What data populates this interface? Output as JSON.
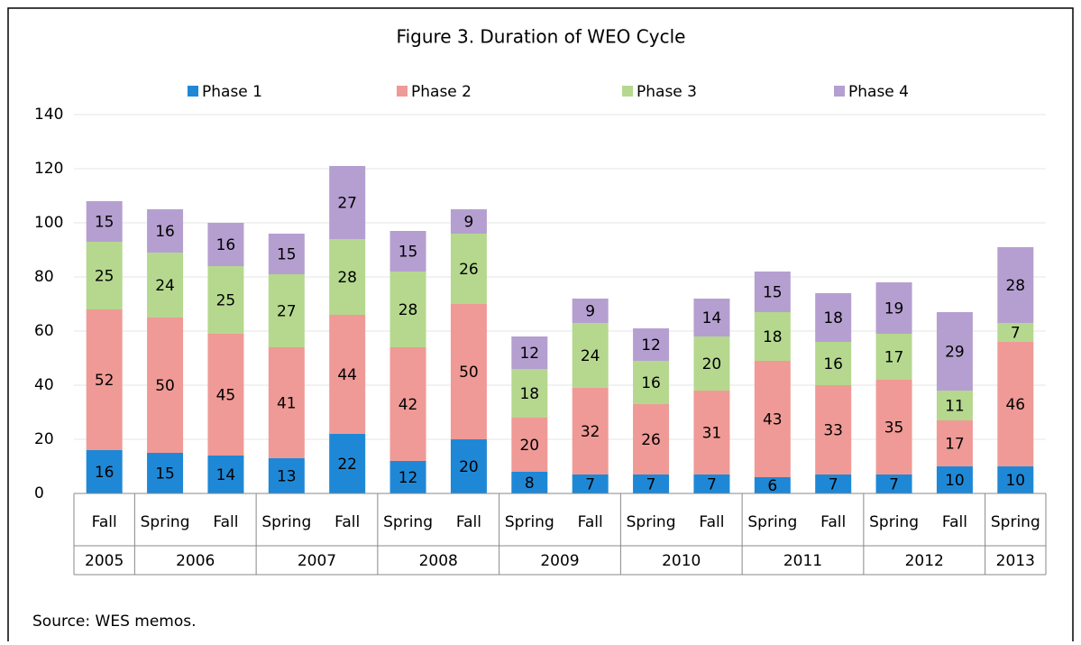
{
  "chart_data": {
    "type": "stacked_bar",
    "title": "Figure 3. Duration of WEO Cycle",
    "groups": [
      {
        "year": "2005",
        "seasons": [
          "Fall"
        ]
      },
      {
        "year": "2006",
        "seasons": [
          "Spring",
          "Fall"
        ]
      },
      {
        "year": "2007",
        "seasons": [
          "Spring",
          "Fall"
        ]
      },
      {
        "year": "2008",
        "seasons": [
          "Spring",
          "Fall"
        ]
      },
      {
        "year": "2009",
        "seasons": [
          "Spring",
          "Fall"
        ]
      },
      {
        "year": "2010",
        "seasons": [
          "Spring",
          "Fall"
        ]
      },
      {
        "year": "2011",
        "seasons": [
          "Spring",
          "Fall"
        ]
      },
      {
        "year": "2012",
        "seasons": [
          "Spring",
          "Fall"
        ]
      },
      {
        "year": "2013",
        "seasons": [
          "Spring"
        ]
      }
    ],
    "series": [
      {
        "name": "Phase 1",
        "color": "#1f88d6",
        "values": [
          16,
          15,
          14,
          13,
          22,
          12,
          20,
          8,
          7,
          7,
          7,
          6,
          7,
          7,
          10,
          10
        ]
      },
      {
        "name": "Phase 2",
        "color": "#ef9a96",
        "values": [
          52,
          50,
          45,
          41,
          44,
          42,
          50,
          20,
          32,
          26,
          31,
          43,
          33,
          35,
          17,
          46
        ]
      },
      {
        "name": "Phase 3",
        "color": "#b5d88e",
        "values": [
          25,
          24,
          25,
          27,
          28,
          28,
          26,
          18,
          24,
          16,
          20,
          18,
          16,
          17,
          11,
          7
        ]
      },
      {
        "name": "Phase 4",
        "color": "#b59fd0",
        "values": [
          15,
          16,
          16,
          15,
          27,
          15,
          9,
          12,
          9,
          12,
          14,
          15,
          18,
          19,
          29,
          28
        ]
      }
    ],
    "ylim": [
      0,
      140
    ],
    "yticks": [
      0,
      20,
      40,
      60,
      80,
      100,
      120,
      140
    ],
    "grid": true,
    "legend": "top",
    "source": "Source: WES memos."
  }
}
